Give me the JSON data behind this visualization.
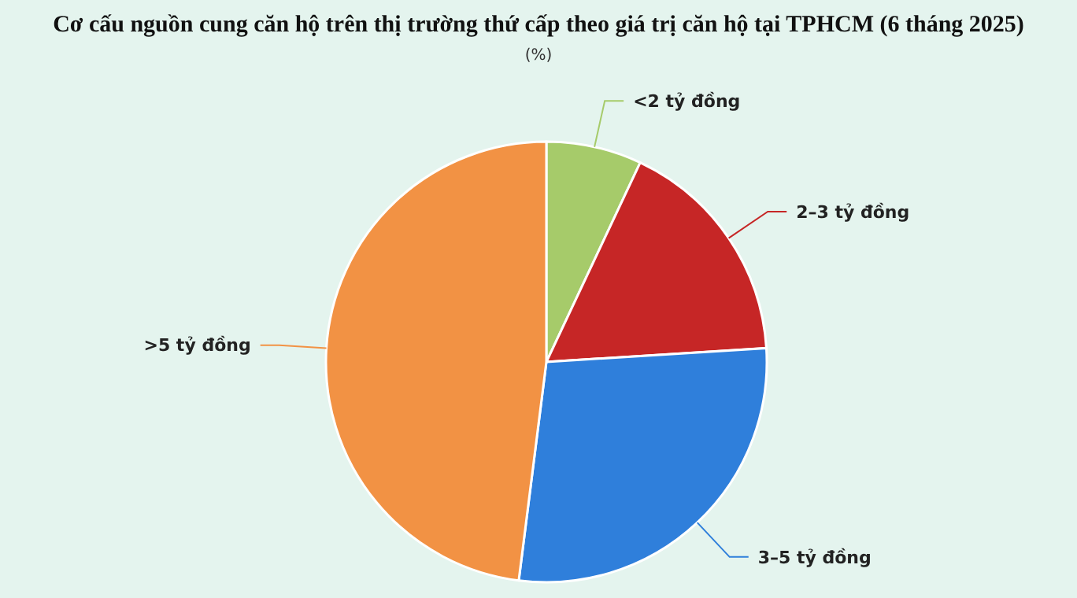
{
  "chart_data": {
    "type": "pie",
    "title": "Cơ cấu nguồn cung căn hộ trên thị trường thứ cấp theo giá trị căn hộ tại TPHCM (6 tháng 2025)",
    "subtitle": "(%)",
    "categories": [
      "<2 tỷ đồng",
      "2–3 tỷ đồng",
      "3–5 tỷ đồng",
      ">5 tỷ đồng"
    ],
    "values": [
      7,
      17,
      28,
      48
    ],
    "colors": [
      "#a6cb6a",
      "#c62626",
      "#2f7fdb",
      "#f29244"
    ]
  }
}
